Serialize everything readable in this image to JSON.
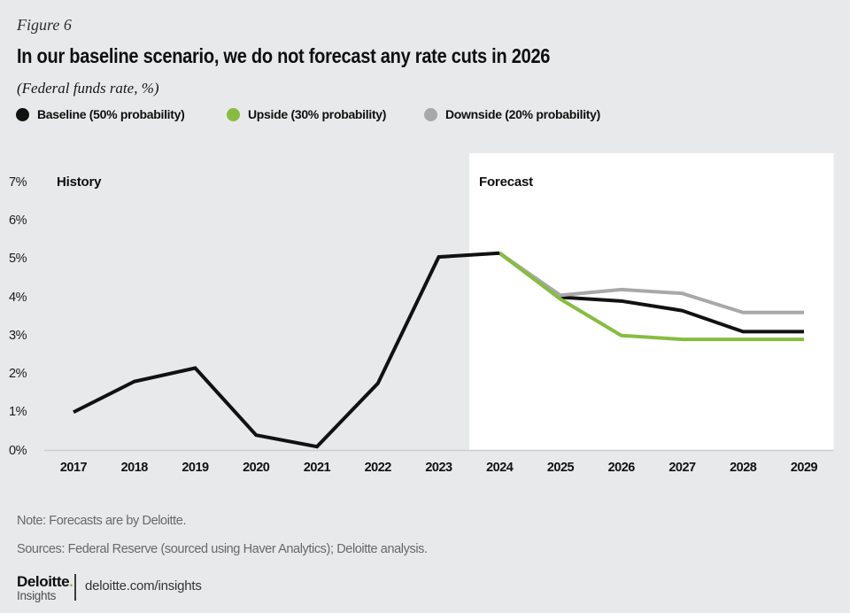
{
  "figure_label": "Figure 6",
  "title": "In our baseline scenario, we do not forecast any rate cuts in 2026",
  "subtitle": "(Federal funds rate, %)",
  "legend": {
    "items": [
      {
        "label": "Baseline (50% probability)",
        "color": "#111111"
      },
      {
        "label": "Upside (30% probability)",
        "color": "#86bd40"
      },
      {
        "label": "Downside (20% probability)",
        "color": "#a8a8a8"
      }
    ]
  },
  "chart_data": {
    "type": "line",
    "title": "In our baseline scenario, we do not forecast any rate cuts in 2026",
    "ylabel": "Federal funds rate, %",
    "ylim": [
      0,
      7
    ],
    "grid": false,
    "legend_position": "top",
    "region_labels": {
      "history": "History",
      "forecast": "Forecast"
    },
    "forecast_region_start": 2023.5,
    "y_ticks": [
      {
        "label": "0%",
        "value": 0
      },
      {
        "label": "1%",
        "value": 1
      },
      {
        "label": "2%",
        "value": 2
      },
      {
        "label": "3%",
        "value": 3
      },
      {
        "label": "4%",
        "value": 4
      },
      {
        "label": "5%",
        "value": 5
      },
      {
        "label": "6%",
        "value": 6
      },
      {
        "label": "7%",
        "value": 7
      }
    ],
    "x_ticks": [
      "2017",
      "2018",
      "2019",
      "2020",
      "2021",
      "2022",
      "2023",
      "2024",
      "2025",
      "2026",
      "2027",
      "2028",
      "2029"
    ],
    "history": {
      "name": "History (actual federal funds rate)",
      "color": "#111111",
      "x": [
        2017,
        2018,
        2019,
        2020,
        2021,
        2022,
        2023,
        2024
      ],
      "values": [
        1.0,
        1.8,
        2.15,
        0.4,
        0.1,
        1.75,
        5.05,
        5.15
      ]
    },
    "series": [
      {
        "name": "Baseline (50% probability)",
        "color": "#111111",
        "x": [
          2024,
          2025,
          2026,
          2027,
          2028,
          2029
        ],
        "values": [
          5.15,
          4.0,
          3.9,
          3.65,
          3.1,
          3.1
        ]
      },
      {
        "name": "Downside (20% probability)",
        "color": "#a8a8a8",
        "x": [
          2024,
          2025,
          2026,
          2027,
          2028,
          2029
        ],
        "values": [
          5.15,
          4.05,
          4.2,
          4.1,
          3.6,
          3.6
        ]
      },
      {
        "name": "Upside (30% probability)",
        "color": "#86bd40",
        "x": [
          2024,
          2025,
          2026,
          2027,
          2028,
          2029
        ],
        "values": [
          5.15,
          3.95,
          3.0,
          2.9,
          2.9,
          2.9
        ]
      }
    ]
  },
  "notes": {
    "note": "Note: Forecasts are by Deloitte.",
    "sources": "Sources: Federal Reserve (sourced using Haver Analytics); Deloitte analysis."
  },
  "footer": {
    "brand": "Deloitte",
    "brand_dot": ".",
    "brand_sub": "Insights",
    "link": "deloitte.com/insights"
  }
}
